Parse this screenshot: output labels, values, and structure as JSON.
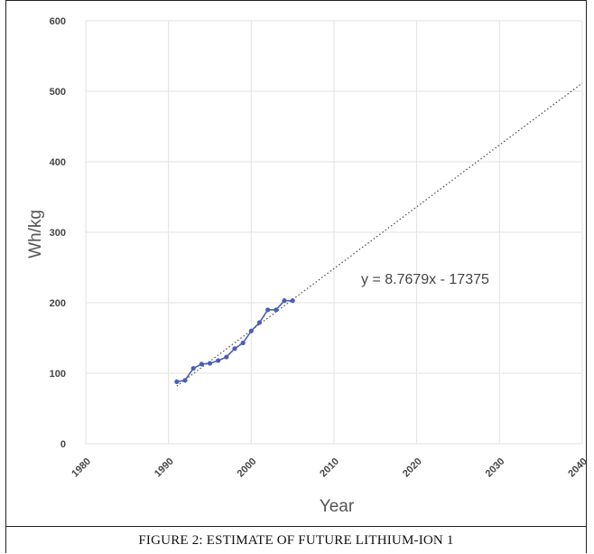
{
  "chart_data": {
    "type": "scatter",
    "xlabel": "Year",
    "ylabel": "Wh/kg",
    "xlim": [
      1980,
      2040
    ],
    "ylim": [
      0,
      600
    ],
    "x_ticks": [
      1980,
      1990,
      2000,
      2010,
      2020,
      2030,
      2040
    ],
    "y_ticks": [
      0,
      100,
      200,
      300,
      400,
      500,
      600
    ],
    "grid": true,
    "series": [
      {
        "color": "#4a5fb5",
        "points": [
          {
            "x": 1991,
            "y": 88
          },
          {
            "x": 1992,
            "y": 90
          },
          {
            "x": 1993,
            "y": 107
          },
          {
            "x": 1994,
            "y": 113
          },
          {
            "x": 1995,
            "y": 114
          },
          {
            "x": 1996,
            "y": 118
          },
          {
            "x": 1997,
            "y": 123
          },
          {
            "x": 1998,
            "y": 135
          },
          {
            "x": 1999,
            "y": 143
          },
          {
            "x": 2000,
            "y": 160
          },
          {
            "x": 2001,
            "y": 172
          },
          {
            "x": 2002,
            "y": 190
          },
          {
            "x": 2003,
            "y": 190
          },
          {
            "x": 2004,
            "y": 203
          },
          {
            "x": 2005,
            "y": 203
          }
        ]
      }
    ],
    "trendline": {
      "slope": 8.7679,
      "intercept": -17375,
      "x_range": [
        1991,
        2040
      ],
      "style": "dotted",
      "color": "#555555",
      "equation_label": "y = 8.7679x - 17375"
    }
  },
  "caption": "FIGURE 2: ESTIMATE OF FUTURE LITHIUM-ION 1"
}
